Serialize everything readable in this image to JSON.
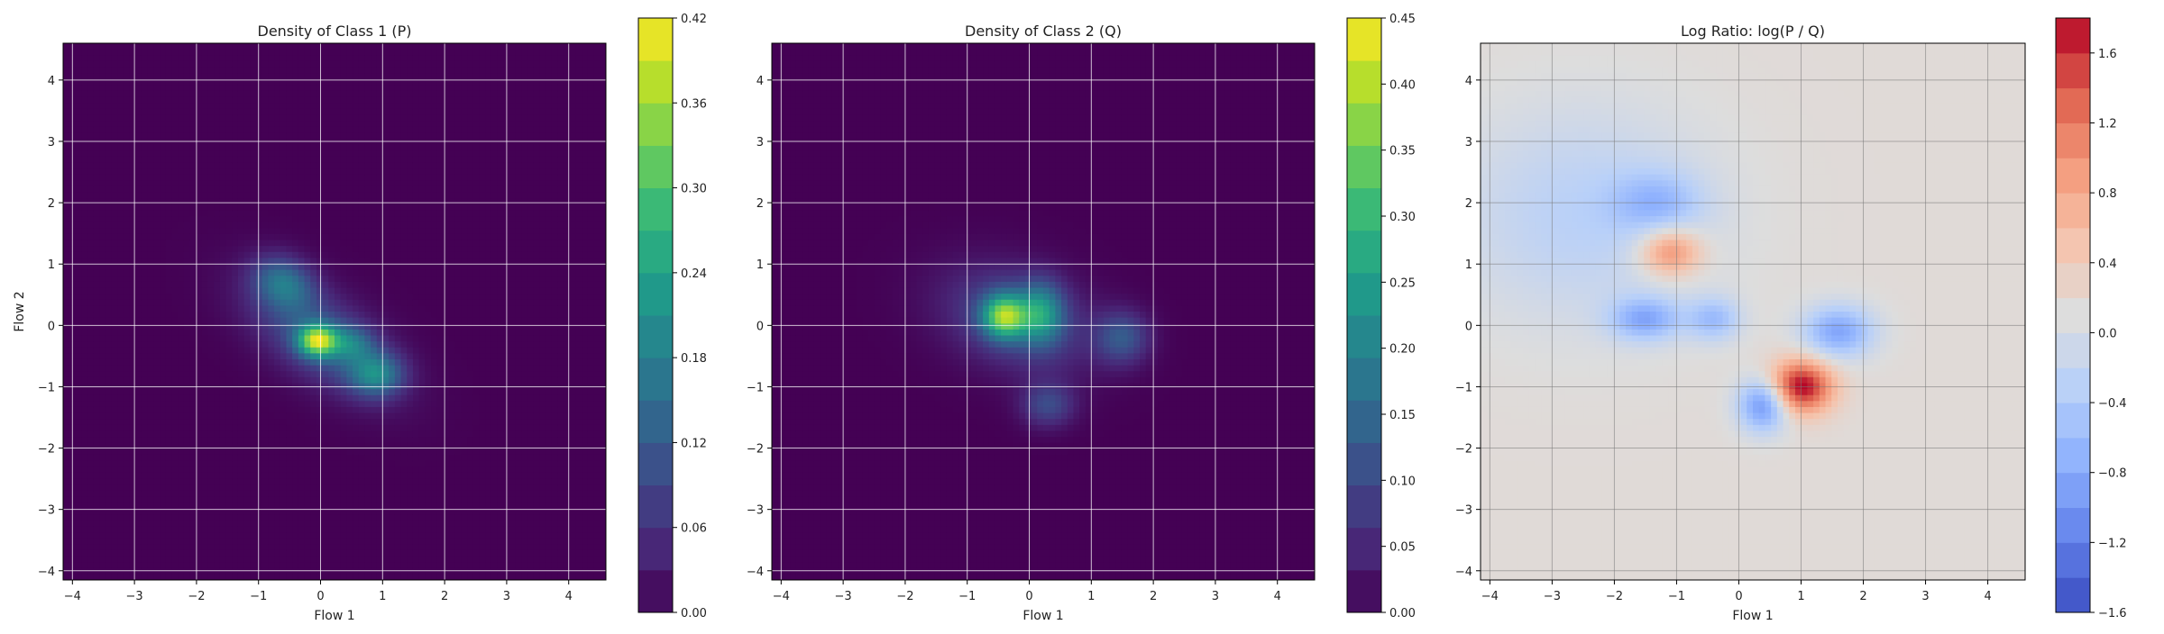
{
  "chart_data": [
    {
      "type": "heatmap",
      "title": "Density of Class 1 (P)",
      "xlabel": "Flow 1",
      "ylabel": "Flow 2",
      "xlim": [
        -4.15,
        4.6
      ],
      "ylim": [
        -4.15,
        4.6
      ],
      "xticks": [
        -4,
        -3,
        -2,
        -1,
        0,
        1,
        2,
        3,
        4
      ],
      "yticks": [
        -4,
        -3,
        -2,
        -1,
        0,
        1,
        2,
        3,
        4
      ],
      "grid": true,
      "colormap": "viridis",
      "colorbar": {
        "min": 0.0,
        "max": 0.42,
        "ticks": [
          "0.00",
          "0.06",
          "0.12",
          "0.18",
          "0.24",
          "0.30",
          "0.36",
          "0.42"
        ]
      },
      "blobs": [
        {
          "x": 0.0,
          "y": -0.2,
          "sx": 0.9,
          "sy": 0.45,
          "rot": -35,
          "peak": 0.12
        },
        {
          "x": -0.05,
          "y": -0.25,
          "sx": 0.22,
          "sy": 0.18,
          "rot": 0,
          "peak": 0.3
        },
        {
          "x": -0.6,
          "y": 0.7,
          "sx": 0.35,
          "sy": 0.28,
          "rot": -30,
          "peak": 0.14
        },
        {
          "x": 0.9,
          "y": -0.8,
          "sx": 0.3,
          "sy": 0.25,
          "rot": 0,
          "peak": 0.16
        },
        {
          "x": 0.5,
          "y": -0.3,
          "sx": 0.25,
          "sy": 0.2,
          "rot": 0,
          "peak": 0.1
        }
      ]
    },
    {
      "type": "heatmap",
      "title": "Density of Class 2 (Q)",
      "xlabel": "Flow 1",
      "ylabel": "",
      "xlim": [
        -4.15,
        4.6
      ],
      "ylim": [
        -4.15,
        4.6
      ],
      "xticks": [
        -4,
        -3,
        -2,
        -1,
        0,
        1,
        2,
        3,
        4
      ],
      "yticks": [
        -4,
        -3,
        -2,
        -1,
        0,
        1,
        2,
        3,
        4
      ],
      "grid": true,
      "colormap": "viridis",
      "colorbar": {
        "min": 0.0,
        "max": 0.45,
        "ticks": [
          "0.00",
          "0.05",
          "0.10",
          "0.15",
          "0.20",
          "0.25",
          "0.30",
          "0.35",
          "0.40",
          "0.45"
        ]
      },
      "blobs": [
        {
          "x": -0.2,
          "y": 0.1,
          "sx": 0.85,
          "sy": 0.55,
          "rot": -20,
          "peak": 0.11
        },
        {
          "x": -0.4,
          "y": 0.15,
          "sx": 0.25,
          "sy": 0.25,
          "rot": 0,
          "peak": 0.3
        },
        {
          "x": 0.2,
          "y": 0.2,
          "sx": 0.25,
          "sy": 0.35,
          "rot": 0,
          "peak": 0.18
        },
        {
          "x": 1.5,
          "y": -0.2,
          "sx": 0.3,
          "sy": 0.3,
          "rot": 0,
          "peak": 0.12
        },
        {
          "x": 0.3,
          "y": -1.3,
          "sx": 0.3,
          "sy": 0.25,
          "rot": 0,
          "peak": 0.1
        }
      ]
    },
    {
      "type": "heatmap",
      "title": "Log Ratio: log(P / Q)",
      "xlabel": "Flow 1",
      "ylabel": "",
      "xlim": [
        -4.15,
        4.6
      ],
      "ylim": [
        -4.15,
        4.6
      ],
      "xticks": [
        -4,
        -3,
        -2,
        -1,
        0,
        1,
        2,
        3,
        4
      ],
      "yticks": [
        -4,
        -3,
        -2,
        -1,
        0,
        1,
        2,
        3,
        4
      ],
      "grid": true,
      "colormap": "coolwarm",
      "colorbar": {
        "min": -1.6,
        "max": 1.8,
        "ticks": [
          "−1.6",
          "−1.2",
          "−0.8",
          "−0.4",
          "0.0",
          "0.4",
          "0.8",
          "1.2",
          "1.6"
        ]
      },
      "background": 0.15,
      "blobs": [
        {
          "x": 1.0,
          "y": -1.0,
          "sx": 0.35,
          "sy": 0.3,
          "rot": 0,
          "peak": 1.7
        },
        {
          "x": -1.1,
          "y": 1.2,
          "sx": 0.35,
          "sy": 0.28,
          "rot": 0,
          "peak": 1.0
        },
        {
          "x": 0.4,
          "y": -1.3,
          "sx": 0.28,
          "sy": 0.3,
          "rot": 0,
          "peak": -1.2
        },
        {
          "x": 1.6,
          "y": -0.1,
          "sx": 0.4,
          "sy": 0.3,
          "rot": 0,
          "peak": -1.0
        },
        {
          "x": -1.5,
          "y": 0.1,
          "sx": 0.4,
          "sy": 0.25,
          "rot": 0,
          "peak": -0.9
        },
        {
          "x": -1.3,
          "y": 2.0,
          "sx": 0.5,
          "sy": 0.35,
          "rot": 0,
          "peak": -0.6
        },
        {
          "x": -0.4,
          "y": 0.1,
          "sx": 0.3,
          "sy": 0.25,
          "rot": 0,
          "peak": -0.7
        },
        {
          "x": -2.5,
          "y": 1.8,
          "sx": 1.4,
          "sy": 1.2,
          "rot": 0,
          "peak": -0.45
        }
      ]
    }
  ]
}
